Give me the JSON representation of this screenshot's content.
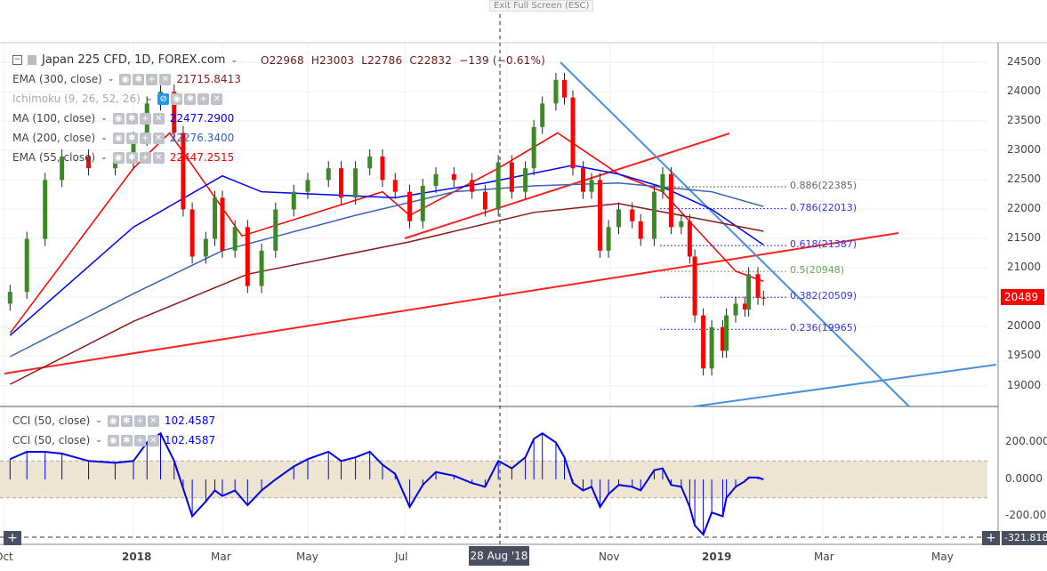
{
  "window": {
    "exit_full_screen": "Exit Full Screen (ESC)"
  },
  "symbol": {
    "title": "Japan 225 CFD, 1D, FOREX.com",
    "open": "O22968",
    "high": "H23003",
    "low": "L22786",
    "close": "C22832",
    "change": "−139 (−0.61%)"
  },
  "indicators": [
    {
      "label": "EMA (300, close)",
      "value": "21715.8413",
      "color": "#8b1a1a"
    },
    {
      "label": "Ichimoku (9, 26, 52, 26)",
      "value": "",
      "color": "#aaaaaa"
    },
    {
      "label": "MA (100, close)",
      "value": "22477.2900",
      "color": "#0000ff"
    },
    {
      "label": "MA (200, close)",
      "value": "22276.3400",
      "color": "#3060c0"
    },
    {
      "label": "EMA (55, close)",
      "value": "22447.2515",
      "color": "#ff0000"
    }
  ],
  "cci_legend": [
    {
      "label": "CCI (50, close)",
      "value": "102.4587"
    },
    {
      "label": "CCI (50, close)",
      "value": "102.4587"
    }
  ],
  "price_axis": [
    "24500",
    "24000",
    "23500",
    "23000",
    "22500",
    "22000",
    "21500",
    "21000",
    "20000",
    "19500",
    "19000"
  ],
  "cci_axis": [
    "200.0000",
    "0.0000",
    "-200.0000"
  ],
  "last_price": "20489",
  "cci_crosshair": "-321.8187",
  "crosshair_date": "28 Aug '18",
  "date_axis": [
    "Oct",
    "2018",
    "Mar",
    "May",
    "Jul",
    "Nov",
    "2019",
    "Mar",
    "May"
  ],
  "fib": [
    {
      "label": "0.886(22385)",
      "level": 22385,
      "color": "#666666"
    },
    {
      "label": "0.786(22013)",
      "level": 22013,
      "color": "#3333ee"
    },
    {
      "label": "0.618(21387)",
      "level": 21387,
      "color": "#3333ee"
    },
    {
      "label": "0.5(20948)",
      "level": 20948,
      "color": "#6aa84f"
    },
    {
      "label": "0.382(20509)",
      "level": 20509,
      "color": "#3333ee"
    },
    {
      "label": "0.236(19965)",
      "level": 19965,
      "color": "#3333ee"
    }
  ],
  "colors": {
    "up": "#3c8a26",
    "down": "#ff0000",
    "cci": "#0000ee",
    "band": "#ede4d2"
  },
  "chart_data": {
    "type": "candlestick",
    "dates": [
      "2017-10-05",
      "2017-10-17",
      "2017-10-30",
      "2017-11-11",
      "2017-11-30",
      "2017-12-19",
      "2018-01-01",
      "2018-01-10",
      "2018-01-19",
      "2018-01-28",
      "2018-02-03",
      "2018-02-09",
      "2018-02-18",
      "2018-02-24",
      "2018-03-01",
      "2018-03-10",
      "2018-03-19",
      "2018-03-29",
      "2018-04-08",
      "2018-04-21",
      "2018-05-01",
      "2018-05-14",
      "2018-05-22",
      "2018-05-31",
      "2018-06-09",
      "2018-06-17",
      "2018-06-25",
      "2018-07-04",
      "2018-07-12",
      "2018-07-20",
      "2018-07-31",
      "2018-08-11",
      "2018-08-19",
      "2018-08-27",
      "2018-09-04",
      "2018-09-12",
      "2018-09-17",
      "2018-09-22",
      "2018-09-30",
      "2018-10-05",
      "2018-10-10",
      "2018-10-16",
      "2018-10-21",
      "2018-10-26",
      "2018-10-31",
      "2018-11-06",
      "2018-11-14",
      "2018-11-19",
      "2018-11-27",
      "2018-12-02",
      "2018-12-07",
      "2018-12-13",
      "2018-12-18",
      "2018-12-21",
      "2018-12-26",
      "2018-12-31",
      "2019-01-06",
      "2019-01-08",
      "2019-01-13",
      "2019-01-18",
      "2019-01-20",
      "2019-01-25",
      "2019-01-28"
    ],
    "close": [
      20600,
      21500,
      22500,
      22900,
      22700,
      22800,
      23200,
      23800,
      24000,
      23300,
      22000,
      21200,
      21500,
      22200,
      21300,
      21700,
      20700,
      21300,
      22000,
      22300,
      22500,
      22700,
      22200,
      22700,
      22900,
      22500,
      22300,
      21800,
      22400,
      22600,
      22500,
      22300,
      22000,
      22800,
      22300,
      22700,
      23400,
      23800,
      24200,
      23900,
      22700,
      22300,
      22500,
      21300,
      21700,
      22000,
      21800,
      21500,
      22300,
      22600,
      21700,
      21800,
      21200,
      20200,
      19300,
      20000,
      19600,
      20200,
      20400,
      20300,
      20900,
      20500,
      20489
    ],
    "cci": [
      110,
      150,
      150,
      140,
      100,
      90,
      100,
      200,
      250,
      100,
      -50,
      -200,
      -120,
      -60,
      -90,
      -60,
      -140,
      -60,
      0,
      70,
      110,
      150,
      100,
      120,
      150,
      80,
      30,
      -150,
      -30,
      40,
      20,
      -20,
      -40,
      100,
      60,
      120,
      220,
      250,
      200,
      120,
      -20,
      -60,
      -40,
      -150,
      -80,
      -30,
      -40,
      -60,
      50,
      60,
      -30,
      -40,
      -150,
      -250,
      -300,
      -180,
      -200,
      -100,
      -40,
      -10,
      10,
      10,
      0
    ],
    "ma_lines": [
      {
        "name": "EMA (55, close)",
        "color": "#ff0000",
        "dates": [
          "2017-10-05",
          "2018-01-01",
          "2018-01-25",
          "2018-03-15",
          "2018-06-17",
          "2018-07-04",
          "2018-08-27",
          "2018-10-01",
          "2018-11-06",
          "2018-12-02",
          "2018-12-21",
          "2019-01-13",
          "2019-01-28"
        ],
        "values": [
          19900,
          22700,
          23300,
          21550,
          22300,
          21900,
          22700,
          23300,
          22600,
          22300,
          21700,
          20950,
          20780
        ]
      },
      {
        "name": "MA (100, close)",
        "color": "#0000ff",
        "dates": [
          "2017-10-05",
          "2018-01-01",
          "2018-03-01",
          "2018-03-29",
          "2018-06-25",
          "2018-08-19",
          "2018-10-10",
          "2018-11-06",
          "2018-12-02",
          "2018-12-31",
          "2019-01-28"
        ],
        "values": [
          19860,
          21700,
          22570,
          22300,
          22200,
          22450,
          22750,
          22600,
          22380,
          22000,
          21400
        ]
      },
      {
        "name": "MA (200, close)",
        "color": "#3a62b5",
        "dates": [
          "2017-10-05",
          "2018-01-01",
          "2018-03-01",
          "2018-05-31",
          "2018-07-31",
          "2018-09-17",
          "2018-11-06",
          "2018-12-31",
          "2019-01-28"
        ],
        "values": [
          19500,
          20570,
          21300,
          21900,
          22300,
          22400,
          22450,
          22300,
          22050
        ]
      },
      {
        "name": "EMA (300, close)",
        "color": "#8b1a1a",
        "dates": [
          "2017-10-05",
          "2018-01-01",
          "2018-03-19",
          "2018-07-04",
          "2018-09-17",
          "2018-11-06",
          "2018-12-31",
          "2019-01-28"
        ],
        "values": [
          19030,
          20100,
          20900,
          21450,
          21950,
          22100,
          21800,
          21630
        ]
      }
    ],
    "price_range": [
      18700,
      24700
    ],
    "cci_range": [
      -330,
      370
    ],
    "grid": true
  }
}
